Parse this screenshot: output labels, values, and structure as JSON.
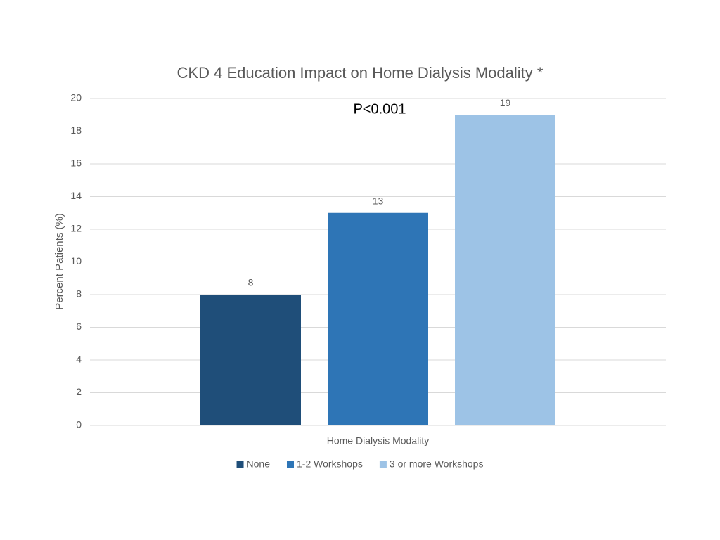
{
  "chart_data": {
    "type": "bar",
    "title": "CKD 4 Education Impact on Home Dialysis Modality *",
    "annotation": "P<0.001",
    "y_label": "Percent Patients (%)",
    "categories": [
      "Home Dialysis Modality"
    ],
    "series": [
      {
        "name": "None",
        "color": "#1f4e79",
        "values": [
          8
        ]
      },
      {
        "name": "1-2 Workshops",
        "color": "#2e75b6",
        "values": [
          13
        ]
      },
      {
        "name": "3 or more Workshops",
        "color": "#9dc3e6",
        "values": [
          19
        ]
      }
    ],
    "ylim": [
      0,
      20
    ],
    "yticks": [
      0,
      2,
      4,
      6,
      8,
      10,
      12,
      14,
      16,
      18,
      20
    ],
    "grid": true,
    "legend": "bottom"
  }
}
